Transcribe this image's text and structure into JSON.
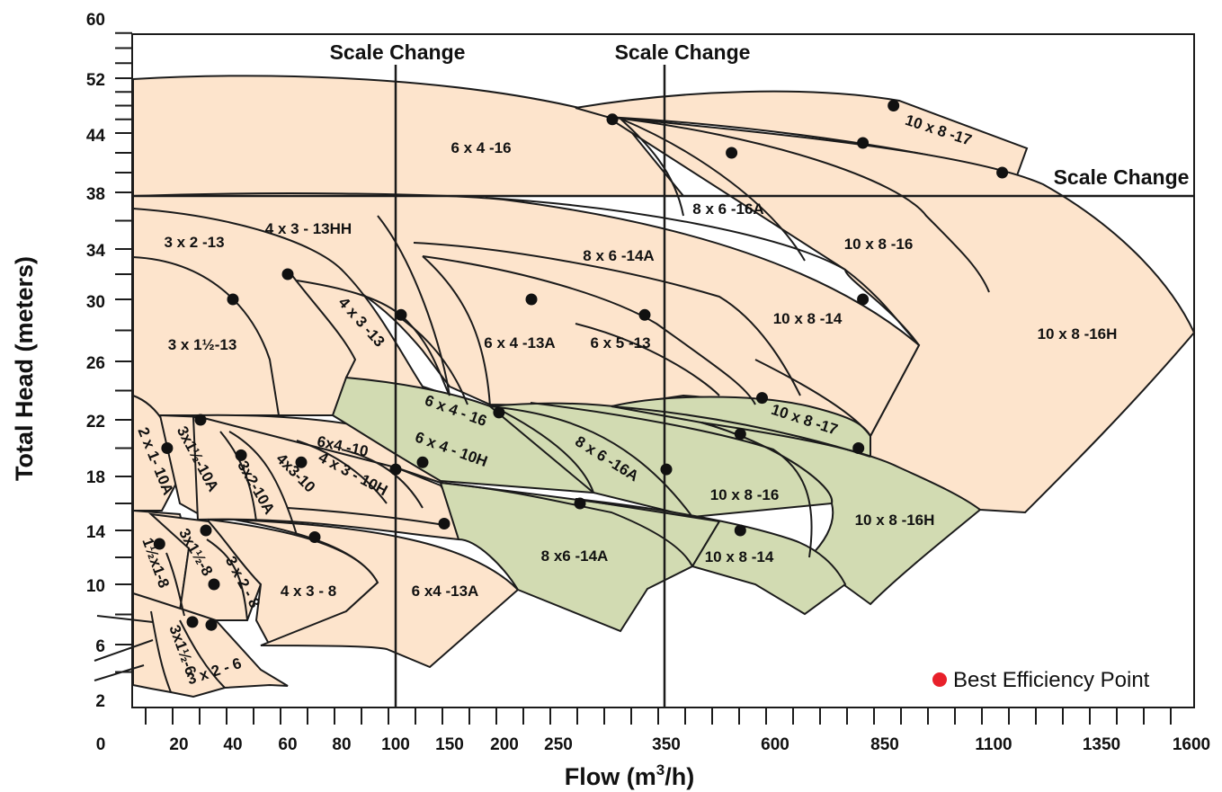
{
  "chart_data": {
    "type": "area",
    "title": "",
    "xlabel": "Flow (m",
    "xlabel_sup": "3",
    "xlabel_end": "/h)",
    "ylabel": "Total Head (meters)",
    "y_ticks": [
      "60",
      "52",
      "44",
      "38",
      "34",
      "30",
      "26",
      "22",
      "18",
      "14",
      "10",
      "6",
      "2"
    ],
    "x_ticks": [
      "0",
      "20",
      "40",
      "60",
      "80",
      "100",
      "150",
      "200",
      "250",
      "350",
      "600",
      "850",
      "1100",
      "1350",
      "1600"
    ],
    "scale_changes": [
      "Scale Change",
      "Scale Change",
      "Scale Change"
    ],
    "legend": {
      "label": "Best Efficiency Point",
      "color": "#e8202a",
      "position": "bottom-right"
    },
    "colors": {
      "peach": "#fde4cc",
      "green": "#d2dbb2",
      "outline": "#1b1b1b"
    },
    "pumps": [
      {
        "model": "6 x 4 -16",
        "group": "upper",
        "bep": {
          "flow": 300,
          "head": 46
        }
      },
      {
        "model": "10 x 8 -17",
        "group": "upper",
        "bep": {
          "flow": 870,
          "head": 48
        }
      },
      {
        "model": "8 x 6 -16A",
        "group": "upper",
        "bep": {
          "flow": 500,
          "head": 42
        }
      },
      {
        "model": "10 x 8 -16",
        "group": "upper",
        "bep": {
          "flow": 800,
          "head": 43
        }
      },
      {
        "model": "10 x 8 -16H",
        "group": "upper",
        "bep": {
          "flow": 1120,
          "head": 40
        }
      },
      {
        "model": "3 x 2 -13",
        "group": "upper"
      },
      {
        "model": "4 x 3 - 13HH",
        "group": "upper",
        "bep": {
          "flow": 60,
          "head": 32
        }
      },
      {
        "model": "8 x 6 -14A",
        "group": "upper"
      },
      {
        "model": "3 x 1½-13",
        "group": "upper",
        "bep": {
          "flow": 40,
          "head": 30
        }
      },
      {
        "model": "4 x 3 -13",
        "group": "upper",
        "bep": {
          "flow": 105,
          "head": 29
        }
      },
      {
        "model": "6 x 4 -13A",
        "group": "upper",
        "bep": {
          "flow": 225,
          "head": 30
        }
      },
      {
        "model": "6 x 5 -13",
        "group": "upper",
        "bep": {
          "flow": 330,
          "head": 29
        }
      },
      {
        "model": "10 x 8 -14",
        "group": "upper",
        "bep": {
          "flow": 800,
          "head": 30
        }
      },
      {
        "model": "6 x 4 - 16",
        "group": "lower",
        "bep": {
          "flow": 195,
          "head": 22.5
        }
      },
      {
        "model": "8 x 6 -16A",
        "group": "lower",
        "bep": {
          "flow": 350,
          "head": 18.5
        }
      },
      {
        "model": "10 x 8 -17",
        "group": "lower",
        "bep": {
          "flow": 570,
          "head": 23.5
        }
      },
      {
        "model": "10 x 8 -16",
        "group": "lower",
        "bep": {
          "flow": 520,
          "head": 21
        }
      },
      {
        "model": "10 x 8 -16H",
        "group": "lower",
        "bep": {
          "flow": 790,
          "head": 20
        }
      },
      {
        "model": "8 x6 -14A",
        "group": "lower",
        "bep": {
          "flow": 270,
          "head": 16
        }
      },
      {
        "model": "10 x 8 -14",
        "group": "lower",
        "bep": {
          "flow": 520,
          "head": 14
        }
      },
      {
        "model": "2 x 1- 10A",
        "group": "lower",
        "bep": {
          "flow": 17,
          "head": 20
        }
      },
      {
        "model": "3x1½-10A",
        "group": "lower",
        "bep": {
          "flow": 28,
          "head": 22
        }
      },
      {
        "model": "3x2-10A",
        "group": "lower",
        "bep": {
          "flow": 43,
          "head": 19.5
        }
      },
      {
        "model": "4x3-10",
        "group": "lower",
        "bep": {
          "flow": 65,
          "head": 19
        }
      },
      {
        "model": "6x4 -10",
        "group": "lower"
      },
      {
        "model": "4 x 3 - 10H",
        "group": "lower",
        "bep": {
          "flow": 100,
          "head": 18.5
        }
      },
      {
        "model": "6 x 4 - 10H",
        "group": "lower",
        "bep": {
          "flow": 125,
          "head": 19
        }
      },
      {
        "model": "1½x1-8",
        "group": "lower",
        "bep": {
          "flow": 15,
          "head": 13
        }
      },
      {
        "model": "3x1½-8",
        "group": "lower",
        "bep": {
          "flow": 30,
          "head": 14
        }
      },
      {
        "model": "3 x 2 - 8",
        "group": "lower",
        "bep": {
          "flow": 33,
          "head": 10
        }
      },
      {
        "model": "4 x 3 - 8",
        "group": "lower",
        "bep": {
          "flow": 70,
          "head": 13.5
        }
      },
      {
        "model": "6 x4 -13A",
        "group": "lower",
        "bep": {
          "flow": 145,
          "head": 14.5
        }
      },
      {
        "model": "3x1½-6",
        "group": "lower",
        "bep": {
          "flow": 25,
          "head": 7.5
        }
      },
      {
        "model": "3 x 2 - 6",
        "group": "lower",
        "bep": {
          "flow": 32,
          "head": 7.3
        }
      }
    ]
  }
}
